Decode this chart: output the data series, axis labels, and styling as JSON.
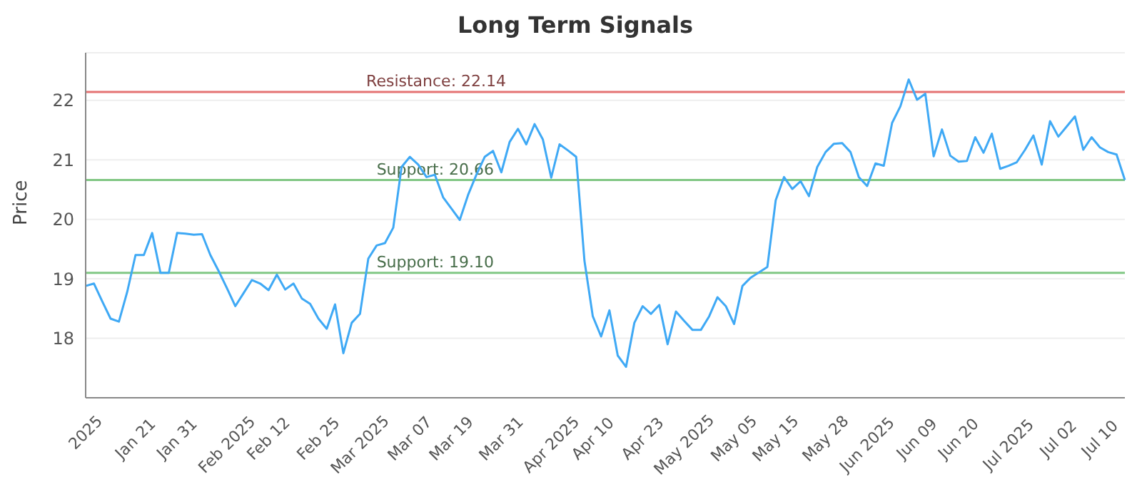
{
  "chart_data": {
    "type": "line",
    "title": "Long Term Signals",
    "ylabel": "Price",
    "categories": [
      "2025",
      null,
      null,
      null,
      null,
      null,
      "Jan 21",
      null,
      null,
      null,
      null,
      "Jan 31",
      null,
      null,
      null,
      null,
      null,
      "Feb 2025",
      null,
      null,
      null,
      null,
      "Feb 12",
      null,
      null,
      null,
      null,
      null,
      "Feb 25",
      null,
      null,
      null,
      null,
      "Mar 2025",
      null,
      null,
      null,
      null,
      null,
      "Mar 07",
      null,
      null,
      null,
      null,
      "Mar 19",
      null,
      null,
      null,
      null,
      null,
      "Mar 31",
      null,
      null,
      null,
      null,
      null,
      "Apr 2025",
      null,
      null,
      null,
      null,
      "Apr 10",
      null,
      null,
      null,
      null,
      null,
      "Apr 23",
      null,
      null,
      null,
      null,
      "May 2025",
      null,
      null,
      null,
      null,
      null,
      "May 05",
      null,
      null,
      null,
      null,
      "May 15",
      null,
      null,
      null,
      null,
      null,
      "May 28",
      null,
      null,
      null,
      null,
      "Jun 2025",
      null,
      null,
      null,
      null,
      null,
      "Jun 09",
      null,
      null,
      null,
      null,
      "Jun 20",
      null,
      null,
      null,
      null,
      null,
      "Jul 2025",
      null,
      null,
      null,
      null,
      null,
      "Jul 02",
      null,
      null,
      null,
      null,
      "Jul 10",
      null,
      null,
      null
    ],
    "series": [
      {
        "color": "#3fa9f5",
        "values": [
          18.88,
          18.92,
          18.62,
          18.33,
          18.28,
          18.78,
          19.4,
          19.4,
          19.77,
          19.1,
          19.1,
          19.77,
          19.76,
          19.74,
          19.75,
          19.4,
          19.13,
          18.84,
          18.54,
          18.76,
          18.98,
          18.92,
          18.81,
          19.07,
          18.82,
          18.92,
          18.67,
          18.58,
          18.33,
          18.16,
          18.57,
          17.75,
          18.26,
          18.41,
          19.34,
          19.56,
          19.6,
          19.86,
          20.88,
          21.05,
          20.92,
          20.71,
          20.75,
          20.37,
          20.18,
          19.99,
          20.41,
          20.75,
          21.05,
          21.15,
          20.79,
          21.3,
          21.52,
          21.26,
          21.6,
          21.34,
          20.7,
          21.26,
          21.16,
          21.05,
          19.3,
          18.37,
          18.03,
          18.47,
          17.71,
          17.52,
          18.26,
          18.54,
          18.41,
          18.56,
          17.9,
          18.45,
          18.29,
          18.14,
          18.14,
          18.37,
          18.69,
          18.54,
          18.24,
          18.88,
          19.02,
          19.11,
          19.2,
          20.32,
          20.71,
          20.51,
          20.64,
          20.39,
          20.88,
          21.13,
          21.27,
          21.28,
          21.13,
          20.71,
          20.56,
          20.94,
          20.9,
          21.62,
          21.9,
          22.35,
          22.01,
          22.11,
          21.06,
          21.51,
          21.07,
          20.97,
          20.98,
          21.38,
          21.12,
          21.44,
          20.85,
          20.9,
          20.96,
          21.17,
          21.41,
          20.92,
          21.65,
          21.39,
          21.56,
          21.73,
          21.17,
          21.38,
          21.21,
          21.13,
          21.09,
          20.66
        ]
      }
    ],
    "ylim": [
      17,
      22.8
    ],
    "yticks": [
      18,
      19,
      20,
      21,
      22
    ],
    "grid": "y",
    "marker": "none",
    "line_style": "solid",
    "ref_lines": [
      {
        "axis": "y",
        "value": 22.14,
        "label": "Resistance: 22.14",
        "color": "#e57373"
      },
      {
        "axis": "y",
        "value": 20.66,
        "label": "Support: 20.66",
        "color": "#81c784"
      },
      {
        "axis": "y",
        "value": 19.1,
        "label": "Support: 19.10",
        "color": "#81c784"
      }
    ]
  }
}
